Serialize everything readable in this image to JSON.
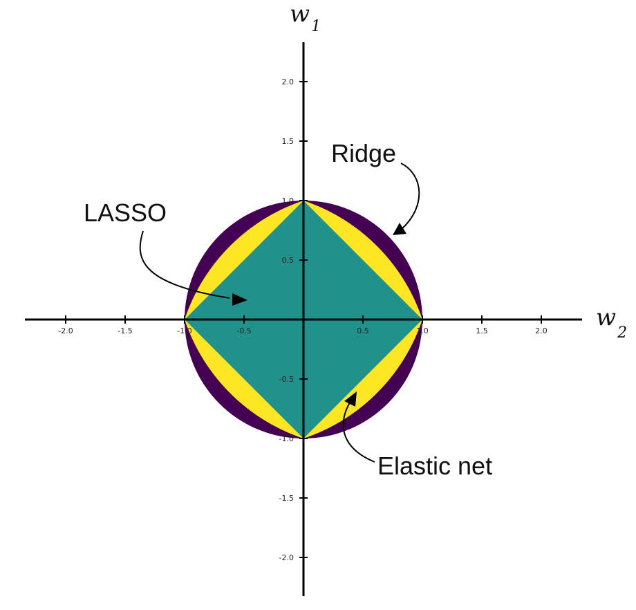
{
  "colors": {
    "ridge": "#440154",
    "elastic_net": "#fde725",
    "lasso": "#21918c",
    "axis": "#000000"
  },
  "axes": {
    "x_title": "w",
    "x_subscript": "2",
    "y_title": "w",
    "y_subscript": "1",
    "x_range": [
      -2.0,
      2.0
    ],
    "y_range": [
      -2.0,
      2.0
    ],
    "x_ticks": [
      -2.0,
      -1.5,
      -1.0,
      -0.5,
      0.5,
      1.0,
      1.5,
      2.0
    ],
    "x_tick_labels": [
      "-2.0",
      "-1.5",
      "-1.0",
      "-0.5",
      "0.5",
      "1.0",
      "1.5",
      "2.0"
    ],
    "y_ticks": [
      2.0,
      1.5,
      1.0,
      0.5,
      -0.5,
      -1.0,
      -1.5,
      -2.0
    ],
    "y_tick_labels": [
      "2.0",
      "1.5",
      "1.0",
      "0.5",
      "-0.5",
      "-1.0",
      "-1.5",
      "-2.0"
    ]
  },
  "regions": {
    "ridge": {
      "label": "Ridge",
      "radius": 1.0
    },
    "elastic_net": {
      "label": "Elastic net",
      "alpha": 0.5
    },
    "lasso": {
      "label": "LASSO",
      "radius": 1.0
    }
  }
}
